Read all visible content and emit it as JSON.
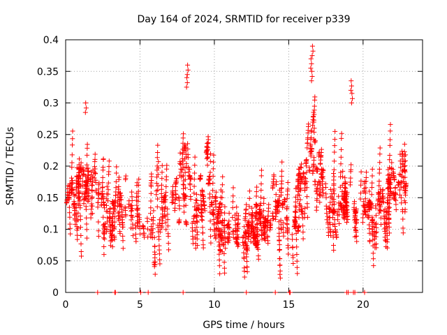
{
  "chart_data": {
    "type": "scatter",
    "title": "Day 164 of 2024, SRMTID for receiver p339",
    "xlabel": "GPS time / hours",
    "ylabel": "SRMTID / TECUs",
    "xlim": [
      0,
      24
    ],
    "ylim": [
      0,
      0.4
    ],
    "xticks": [
      0,
      5,
      10,
      15,
      20
    ],
    "xtick_labels": [
      "0",
      "5",
      "10",
      "15",
      "20"
    ],
    "yticks": [
      0,
      0.05,
      0.1,
      0.15,
      0.2,
      0.25,
      0.3,
      0.35,
      0.4
    ],
    "ytick_labels": [
      "0",
      "0.05",
      "0.1",
      "0.15",
      "0.2",
      "0.25",
      "0.3",
      "0.35",
      "0.4"
    ],
    "grid": true,
    "marker": "plus",
    "color": "#ff0000",
    "zero_points_x": [
      2.15,
      3.3,
      3.35,
      5.05,
      5.55,
      7.9,
      12.15,
      14.1,
      15.05,
      15.1,
      18.9,
      19.0,
      19.35,
      19.45,
      20.1
    ],
    "envelope": {
      "x": [
        0,
        0.5,
        1.0,
        1.3,
        1.5,
        2.0,
        2.3,
        2.6,
        3.0,
        3.5,
        4.0,
        4.5,
        5.0,
        5.5,
        6.0,
        6.5,
        7.0,
        7.5,
        7.8,
        8.0,
        8.2,
        8.5,
        9.0,
        9.5,
        10.0,
        10.5,
        11.0,
        11.5,
        12.0,
        12.5,
        13.0,
        13.5,
        14.0,
        14.5,
        15.0,
        15.5,
        16.0,
        16.3,
        16.6,
        16.8,
        17.0,
        17.5,
        18.0,
        18.5,
        19.0,
        19.2,
        19.5,
        20.0,
        20.5,
        21.0,
        21.5,
        22.0,
        22.3,
        22.7,
        23.0
      ],
      "center": [
        0.14,
        0.15,
        0.17,
        0.18,
        0.16,
        0.16,
        0.15,
        0.12,
        0.09,
        0.14,
        0.14,
        0.12,
        0.14,
        0.12,
        0.1,
        0.12,
        0.14,
        0.16,
        0.19,
        0.2,
        0.18,
        0.14,
        0.15,
        0.17,
        0.14,
        0.1,
        0.09,
        0.1,
        0.09,
        0.1,
        0.11,
        0.12,
        0.13,
        0.14,
        0.12,
        0.12,
        0.17,
        0.2,
        0.22,
        0.2,
        0.18,
        0.16,
        0.14,
        0.13,
        0.14,
        0.14,
        0.12,
        0.15,
        0.12,
        0.12,
        0.15,
        0.16,
        0.18,
        0.16,
        0.15
      ],
      "spread": [
        0.04,
        0.05,
        0.05,
        0.06,
        0.05,
        0.05,
        0.05,
        0.04,
        0.04,
        0.05,
        0.05,
        0.05,
        0.05,
        0.05,
        0.05,
        0.05,
        0.05,
        0.06,
        0.07,
        0.08,
        0.07,
        0.06,
        0.05,
        0.06,
        0.05,
        0.03,
        0.03,
        0.03,
        0.03,
        0.03,
        0.03,
        0.04,
        0.04,
        0.04,
        0.04,
        0.04,
        0.05,
        0.06,
        0.08,
        0.07,
        0.06,
        0.05,
        0.05,
        0.04,
        0.05,
        0.05,
        0.04,
        0.05,
        0.04,
        0.04,
        0.05,
        0.05,
        0.06,
        0.05,
        0.04
      ]
    },
    "peaks": [
      {
        "x": 1.35,
        "y": 0.3
      },
      {
        "x": 8.2,
        "y": 0.36
      },
      {
        "x": 8.15,
        "y": 0.34
      },
      {
        "x": 16.6,
        "y": 0.39
      },
      {
        "x": 16.5,
        "y": 0.37
      },
      {
        "x": 16.55,
        "y": 0.35
      },
      {
        "x": 19.2,
        "y": 0.335
      },
      {
        "x": 19.25,
        "y": 0.315
      }
    ],
    "samples": 2200,
    "x_end": 22.9
  }
}
